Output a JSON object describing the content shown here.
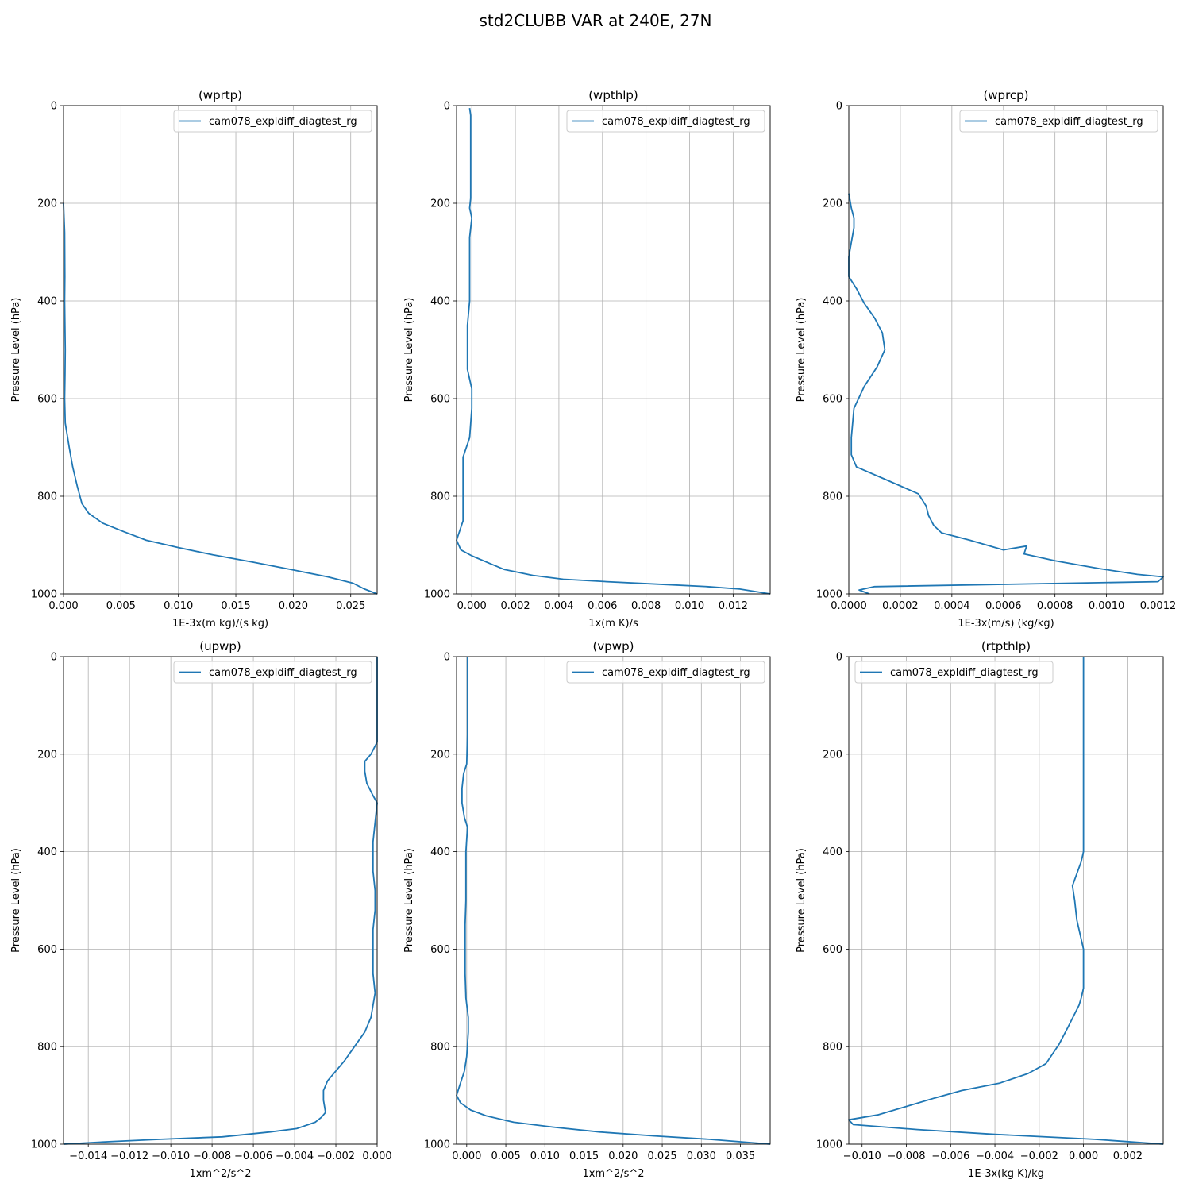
{
  "figure": {
    "title": "std2CLUBB VAR at 240E, 27N",
    "line_color": "#1f77b4",
    "grid_color": "#b0b0b0"
  },
  "chart_data": [
    {
      "type": "line",
      "title": "(wprtp)",
      "xlabel": "1E-3x(m kg)/(s kg)",
      "ylabel": "Pressure Level (hPa)",
      "xlim": [
        0,
        0.0273
      ],
      "ylim": [
        1000,
        0
      ],
      "y_inverted": true,
      "xticks": [
        0,
        0.005,
        0.01,
        0.015,
        0.02,
        0.025
      ],
      "xtick_labels": [
        "0.000",
        "0.005",
        "0.010",
        "0.015",
        "0.020",
        "0.025"
      ],
      "yticks": [
        0,
        200,
        400,
        600,
        800,
        1000
      ],
      "ytick_labels": [
        "0",
        "200",
        "400",
        "600",
        "800",
        "1000"
      ],
      "grid": true,
      "legend_position": "upper right",
      "series": [
        {
          "name": "cam078_expldiff_diagtest_rg",
          "x": [
            0.0,
            0.0001,
            0.00012,
            0.0001,
            0.00015,
            0.00013,
            0.0001,
            0.00015,
            0.0005,
            0.0008,
            0.0012,
            0.0016,
            0.0022,
            0.0034,
            0.0052,
            0.0072,
            0.01,
            0.013,
            0.0165,
            0.0198,
            0.023,
            0.0252,
            0.0262,
            0.0273
          ],
          "y": [
            200,
            260,
            350,
            400,
            500,
            550,
            600,
            650,
            700,
            740,
            780,
            815,
            835,
            855,
            872,
            890,
            905,
            920,
            935,
            950,
            965,
            978,
            990,
            1000
          ]
        }
      ]
    },
    {
      "type": "line",
      "title": "(wpthlp)",
      "xlabel": "1x(m K)/s",
      "ylabel": "Pressure Level (hPa)",
      "xlim": [
        -0.0007,
        0.0137
      ],
      "ylim": [
        1000,
        0
      ],
      "y_inverted": true,
      "xticks": [
        0,
        0.002,
        0.004,
        0.006,
        0.008,
        0.01,
        0.012
      ],
      "xtick_labels": [
        "0.000",
        "0.002",
        "0.004",
        "0.006",
        "0.008",
        "0.010",
        "0.012"
      ],
      "yticks": [
        0,
        200,
        400,
        600,
        800,
        1000
      ],
      "ytick_labels": [
        "0",
        "200",
        "400",
        "600",
        "800",
        "1000"
      ],
      "grid": true,
      "legend_position": "upper right",
      "series": [
        {
          "name": "cam078_expldiff_diagtest_rg",
          "x": [
            -0.0001,
            -5e-05,
            -5e-05,
            -0.0001,
            0.0,
            -0.0001,
            -0.0001,
            -0.0001,
            -0.0002,
            -0.0002,
            -0.0002,
            0.0,
            0.0,
            -0.0001,
            -0.0004,
            -0.0004,
            -0.0004,
            -0.0007,
            -0.0005,
            0.0,
            0.0008,
            0.0015,
            0.0028,
            0.0042,
            0.0062,
            0.0085,
            0.0108,
            0.0123,
            0.0137
          ],
          "y": [
            5,
            20,
            190,
            210,
            230,
            270,
            350,
            400,
            450,
            500,
            540,
            580,
            620,
            680,
            720,
            770,
            850,
            890,
            910,
            922,
            937,
            950,
            962,
            970,
            975,
            980,
            985,
            990,
            1000
          ]
        }
      ]
    },
    {
      "type": "line",
      "title": "(wprcp)",
      "xlabel": "1E-3x(m/s) (kg/kg)",
      "ylabel": "Pressure Level (hPa)",
      "xlim": [
        0,
        0.00122
      ],
      "ylim": [
        1000,
        0
      ],
      "y_inverted": true,
      "xticks": [
        0,
        0.0002,
        0.0004,
        0.0006,
        0.0008,
        0.001,
        0.0012
      ],
      "xtick_labels": [
        "0.0000",
        "0.0002",
        "0.0004",
        "0.0006",
        "0.0008",
        "0.0010",
        "0.0012"
      ],
      "yticks": [
        0,
        200,
        400,
        600,
        800,
        1000
      ],
      "ytick_labels": [
        "0",
        "200",
        "400",
        "600",
        "800",
        "1000"
      ],
      "grid": true,
      "legend_position": "upper right",
      "series": [
        {
          "name": "cam078_expldiff_diagtest_rg",
          "x": [
            0.0,
            1e-05,
            2e-05,
            2e-05,
            1e-05,
            0.0,
            0.0,
            3e-05,
            6e-05,
            0.0001,
            0.00013,
            0.00014,
            0.00011,
            6e-05,
            2e-05,
            1e-05,
            1e-05,
            3e-05,
            0.00014,
            0.00027,
            0.0003,
            0.00031,
            0.00033,
            0.00036,
            0.00047,
            0.0006,
            0.00069,
            0.00068,
            0.0008,
            0.00097,
            0.00112,
            0.00122,
            0.0012,
            0.0001,
            4e-05,
            8e-05
          ],
          "y": [
            180,
            210,
            230,
            250,
            280,
            310,
            350,
            375,
            405,
            435,
            465,
            500,
            535,
            575,
            620,
            680,
            715,
            740,
            765,
            795,
            820,
            840,
            860,
            875,
            890,
            910,
            902,
            918,
            932,
            948,
            960,
            965,
            975,
            985,
            992,
            1000
          ]
        }
      ]
    },
    {
      "type": "line",
      "title": "(upwp)",
      "xlabel": "1xm^2/s^2",
      "ylabel": "Pressure Level (hPa)",
      "xlim": [
        -0.0152,
        0.0
      ],
      "ylim": [
        1000,
        0
      ],
      "y_inverted": true,
      "xticks": [
        -0.014,
        -0.012,
        -0.01,
        -0.008,
        -0.006,
        -0.004,
        -0.002,
        0
      ],
      "xtick_labels": [
        "−0.014",
        "−0.012",
        "−0.010",
        "−0.008",
        "−0.006",
        "−0.004",
        "−0.002",
        "0.000"
      ],
      "yticks": [
        0,
        200,
        400,
        600,
        800,
        1000
      ],
      "ytick_labels": [
        "0",
        "200",
        "400",
        "600",
        "800",
        "1000"
      ],
      "grid": true,
      "legend_position": "upper right",
      "series": [
        {
          "name": "cam078_expldiff_diagtest_rg",
          "x": [
            0.0,
            0.0,
            -0.0003,
            -0.0006,
            -0.0006,
            -0.0005,
            -0.0002,
            0.0,
            -0.0001,
            -0.0002,
            -0.0002,
            -0.0002,
            -0.0001,
            -0.0001,
            -0.0002,
            -0.0002,
            -0.0002,
            -0.0001,
            -0.0003,
            -0.0006,
            -0.0011,
            -0.0016,
            -0.0024,
            -0.0026,
            -0.0026,
            -0.0025,
            -0.0027,
            -0.003,
            -0.0039,
            -0.0052,
            -0.0075,
            -0.0105,
            -0.013,
            -0.0152
          ],
          "y": [
            0,
            175,
            200,
            215,
            235,
            260,
            285,
            300,
            340,
            380,
            400,
            440,
            480,
            520,
            560,
            610,
            650,
            690,
            740,
            770,
            800,
            830,
            870,
            890,
            910,
            935,
            945,
            955,
            968,
            975,
            985,
            990,
            995,
            1000
          ]
        }
      ]
    },
    {
      "type": "line",
      "title": "(vpwp)",
      "xlabel": "1xm^2/s^2",
      "ylabel": "Pressure Level (hPa)",
      "xlim": [
        -0.0013,
        0.0388
      ],
      "ylim": [
        1000,
        0
      ],
      "y_inverted": true,
      "xticks": [
        0,
        0.005,
        0.01,
        0.015,
        0.02,
        0.025,
        0.03,
        0.035
      ],
      "xtick_labels": [
        "0.000",
        "0.005",
        "0.010",
        "0.015",
        "0.020",
        "0.025",
        "0.030",
        "0.035"
      ],
      "yticks": [
        0,
        200,
        400,
        600,
        800,
        1000
      ],
      "ytick_labels": [
        "0",
        "200",
        "400",
        "600",
        "800",
        "1000"
      ],
      "grid": true,
      "legend_position": "upper right",
      "series": [
        {
          "name": "cam078_expldiff_diagtest_rg",
          "x": [
            0.0001,
            0.0001,
            0.0,
            -0.0004,
            -0.0006,
            -0.0006,
            -0.0003,
            0.0001,
            -0.0001,
            -0.0001,
            -0.0001,
            -0.0002,
            -0.0002,
            -0.0002,
            -0.0001,
            0.0002,
            0.0002,
            0.0,
            -0.0003,
            -0.0009,
            -0.0013,
            -0.0008,
            0.0005,
            0.0025,
            0.006,
            0.011,
            0.017,
            0.024,
            0.031,
            0.0388
          ],
          "y": [
            0,
            160,
            220,
            240,
            270,
            300,
            330,
            350,
            400,
            450,
            500,
            550,
            600,
            650,
            700,
            740,
            770,
            820,
            850,
            880,
            900,
            915,
            930,
            942,
            955,
            965,
            975,
            983,
            990,
            1000
          ]
        }
      ]
    },
    {
      "type": "line",
      "title": "(rtpthlp)",
      "xlabel": "1E-3x(kg K)/kg",
      "ylabel": "Pressure Level (hPa)",
      "xlim": [
        -0.0106,
        0.0036
      ],
      "ylim": [
        1000,
        0
      ],
      "y_inverted": true,
      "xticks": [
        -0.01,
        -0.008,
        -0.006,
        -0.004,
        -0.002,
        0,
        0.002
      ],
      "xtick_labels": [
        "−0.010",
        "−0.008",
        "−0.006",
        "−0.004",
        "−0.002",
        "0.000",
        "0.002"
      ],
      "yticks": [
        0,
        200,
        400,
        600,
        800,
        1000
      ],
      "ytick_labels": [
        "0",
        "200",
        "400",
        "600",
        "800",
        "1000"
      ],
      "grid": true,
      "legend_position": "upper left",
      "series": [
        {
          "name": "cam078_expldiff_diagtest_rg",
          "x": [
            0.0,
            0.0,
            -0.0001,
            -0.0005,
            -0.0004,
            -0.0003,
            0.0,
            0.0,
            -0.0001,
            -0.0002,
            -0.0007,
            -0.0011,
            -0.0017,
            -0.0025,
            -0.0038,
            -0.0055,
            -0.0067,
            -0.0078,
            -0.0093,
            -0.0106,
            -0.0104,
            -0.0075,
            -0.004,
            0.0005,
            0.0036
          ],
          "y": [
            0,
            400,
            420,
            470,
            500,
            540,
            600,
            680,
            700,
            715,
            760,
            795,
            835,
            855,
            875,
            890,
            905,
            920,
            940,
            950,
            960,
            970,
            980,
            990,
            1000
          ]
        }
      ]
    }
  ]
}
